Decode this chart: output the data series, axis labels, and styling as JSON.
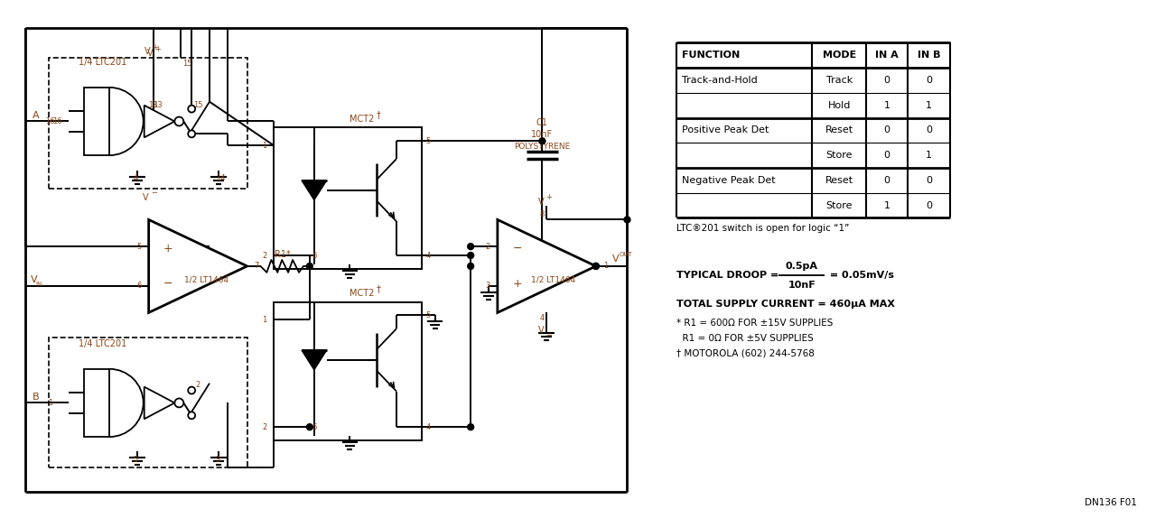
{
  "bg_color": "#ffffff",
  "line_color": "#000000",
  "text_color_brown": "#8B4513",
  "text_color_black": "#000000",
  "fig_width": 12.8,
  "fig_height": 5.74,
  "table_headers": [
    "FUNCTION",
    "MODE",
    "IN A",
    "IN B"
  ],
  "table_rows": [
    [
      "Track-and-Hold",
      "Track",
      "0",
      "0"
    ],
    [
      "",
      "Hold",
      "1",
      "1"
    ],
    [
      "Positive Peak Det",
      "Reset",
      "0",
      "0"
    ],
    [
      "",
      "Store",
      "0",
      "1"
    ],
    [
      "Negative Peak Det",
      "Reset",
      "0",
      "0"
    ],
    [
      "",
      "Store",
      "1",
      "0"
    ]
  ],
  "footnote1": "LTC®201 switch is open for logic “1”",
  "droop_num": "0.5pA",
  "droop_den": "10nF",
  "droop_result": " = 0.05mV/s",
  "supply_text": "TOTAL SUPPLY CURRENT = 460μA MAX",
  "note1": "* R1 = 600Ω FOR ±15V SUPPLIES",
  "note2": "  R1 = 0Ω FOR ±5V SUPPLIES",
  "note3": "† MOTOROLA (602) 244-5768",
  "fig_label": "DN136 F01"
}
